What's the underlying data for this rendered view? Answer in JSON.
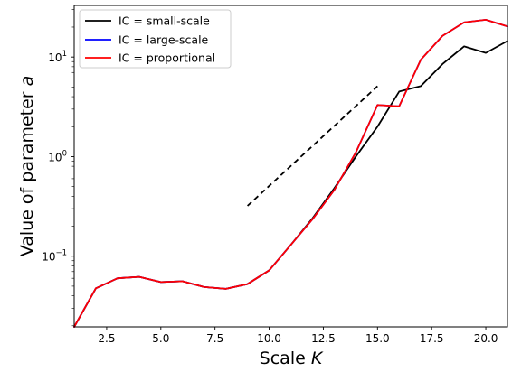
{
  "chart_data": {
    "type": "line",
    "xlabel": "Scale",
    "xlabel_var": "K",
    "ylabel": "Value of parameter",
    "ylabel_var": "a",
    "xlim": [
      1,
      21
    ],
    "ylim": [
      0.0195,
      33
    ],
    "yscale": "log",
    "grid": false,
    "legend_position": "top-left",
    "x_ticks": [
      2.5,
      5.0,
      7.5,
      10.0,
      12.5,
      15.0,
      17.5,
      20.0
    ],
    "x_tick_labels": [
      "2.5",
      "5.0",
      "7.5",
      "10.0",
      "12.5",
      "15.0",
      "17.5",
      "20.0"
    ],
    "y_ticks": [
      0.1,
      1,
      10
    ],
    "y_tick_labels": [
      {
        "base": "10",
        "exp": "−1"
      },
      {
        "base": "10",
        "exp": "0"
      },
      {
        "base": "10",
        "exp": "1"
      }
    ],
    "series": [
      {
        "name": "IC = small-scale",
        "color": "#000000",
        "x": [
          1,
          2,
          3,
          4,
          5,
          6,
          7,
          8,
          9,
          10,
          11,
          12,
          13,
          14,
          15,
          16,
          17,
          18,
          19,
          20,
          21
        ],
        "y": [
          0.0195,
          0.0475,
          0.06,
          0.062,
          0.055,
          0.056,
          0.049,
          0.047,
          0.0525,
          0.072,
          0.13,
          0.24,
          0.48,
          1.0,
          2.0,
          4.5,
          5.1,
          8.5,
          12.8,
          11.0,
          14.5
        ]
      },
      {
        "name": "IC = large-scale",
        "color": "#0000ff",
        "x": [
          1,
          2,
          3,
          4,
          5,
          6,
          7,
          8,
          9,
          10,
          11,
          12,
          13,
          14,
          15,
          16,
          17,
          18,
          19,
          20,
          21
        ],
        "y": [
          0.0195,
          0.0475,
          0.06,
          0.062,
          0.055,
          0.056,
          0.049,
          0.047,
          0.0525,
          0.072,
          0.13,
          0.235,
          0.46,
          1.1,
          3.3,
          3.2,
          9.4,
          16.3,
          22.3,
          23.7,
          20.3
        ]
      },
      {
        "name": "IC = proportional",
        "color": "#ff0000",
        "x": [
          1,
          2,
          3,
          4,
          5,
          6,
          7,
          8,
          9,
          10,
          11,
          12,
          13,
          14,
          15,
          16,
          17,
          18,
          19,
          20,
          21
        ],
        "y": [
          0.0195,
          0.0475,
          0.06,
          0.062,
          0.055,
          0.056,
          0.049,
          0.047,
          0.0525,
          0.072,
          0.13,
          0.235,
          0.46,
          1.1,
          3.3,
          3.2,
          9.4,
          16.3,
          22.3,
          23.7,
          20.3
        ]
      }
    ],
    "reference_line": {
      "style": "dashed",
      "color": "#000000",
      "x": [
        9,
        15
      ],
      "y": [
        0.32,
        5.1
      ]
    }
  }
}
